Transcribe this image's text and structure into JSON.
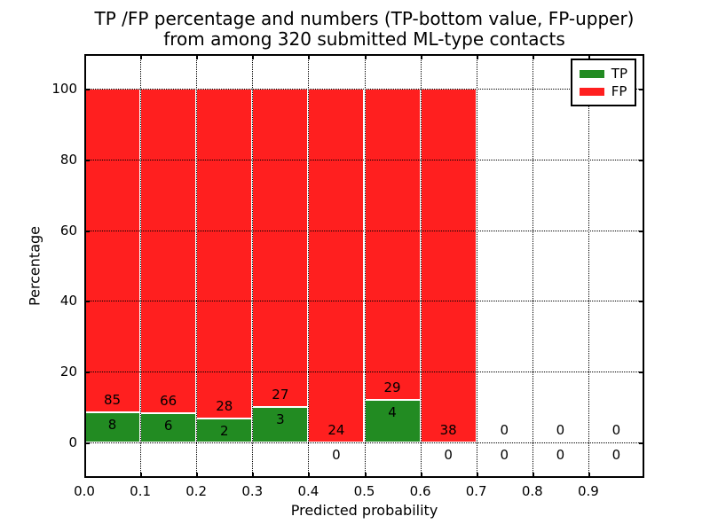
{
  "title": {
    "line1": "TP /FP percentage and numbers (TP-bottom value, FP-upper)",
    "line2": "from among 320 submitted ML-type contacts"
  },
  "axes": {
    "xlabel": "Predicted probability",
    "ylabel": "Percentage",
    "xtick_labels": [
      "0.0",
      "0.1",
      "0.2",
      "0.3",
      "0.4",
      "0.5",
      "0.6",
      "0.7",
      "0.8",
      "0.9"
    ],
    "ytick_values": [
      0,
      20,
      40,
      60,
      80,
      100
    ],
    "ytick_labels": [
      "0",
      "20",
      "40",
      "60",
      "80",
      "100"
    ]
  },
  "legend": {
    "position": "upper right",
    "items": [
      {
        "label": "TP",
        "color": "#228b22"
      },
      {
        "label": "FP",
        "color": "#ff1f1f"
      }
    ]
  },
  "colors": {
    "tp": "#228b22",
    "fp": "#ff1f1f",
    "grid": "#000000",
    "background": "#ffffff",
    "bar_edge": "#ffffff"
  },
  "chart_data": {
    "type": "bar",
    "stacked": true,
    "normalized_per_bin_to_100pct": true,
    "title": "TP /FP percentage and numbers (TP-bottom value, FP-upper) from among 320 submitted ML-type contacts",
    "xlabel": "Predicted probability",
    "ylabel": "Percentage",
    "xlim": [
      0.0,
      1.0
    ],
    "ylim": [
      -10.3,
      109.8
    ],
    "grid": true,
    "legend_position": "upper right",
    "total_contacts": 320,
    "bin_width": 0.1,
    "bin_starts": [
      0.0,
      0.1,
      0.2,
      0.3,
      0.4,
      0.5,
      0.6,
      0.7,
      0.8,
      0.9
    ],
    "series": [
      {
        "name": "TP",
        "color": "#228b22",
        "counts": [
          8,
          6,
          2,
          3,
          0,
          4,
          0,
          0,
          0,
          0
        ]
      },
      {
        "name": "FP",
        "color": "#ff1f1f",
        "counts": [
          85,
          66,
          28,
          27,
          24,
          29,
          38,
          0,
          0,
          0
        ]
      }
    ],
    "tp_percent_of_bin": [
      8.6,
      8.33,
      6.67,
      10.0,
      0,
      12.12,
      0,
      0,
      0,
      0
    ],
    "label_convention": "FP count printed above TP count at each bin; bars with data fill to 100%"
  }
}
